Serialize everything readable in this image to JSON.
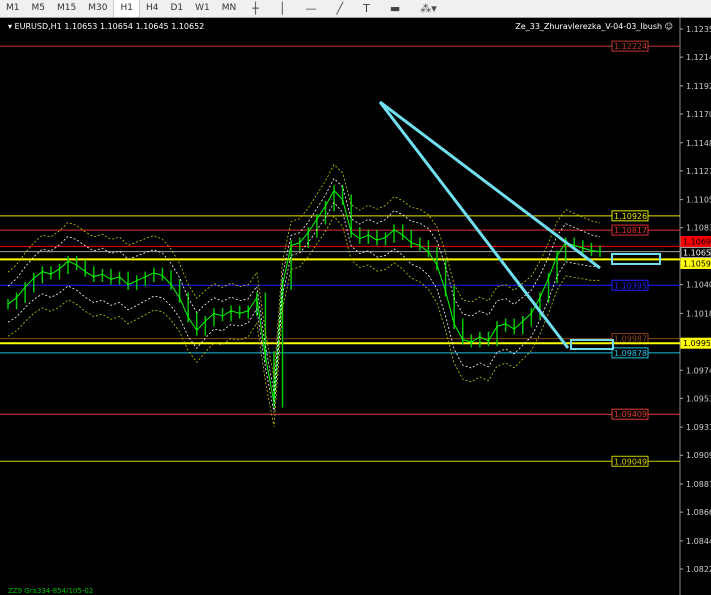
{
  "toolbar": {
    "timeframes": [
      "M1",
      "M5",
      "M15",
      "M30",
      "H1",
      "H4",
      "D1",
      "W1",
      "MN"
    ],
    "selected": "H1",
    "tools": [
      {
        "name": "crosshair-icon",
        "glyph": "┼"
      },
      {
        "name": "vertical-line-icon",
        "glyph": "│"
      },
      {
        "name": "horizontal-line-icon",
        "glyph": "—"
      },
      {
        "name": "trendline-icon",
        "glyph": "╱"
      },
      {
        "name": "text-icon",
        "glyph": "T"
      },
      {
        "name": "label-icon",
        "glyph": "▬"
      },
      {
        "name": "more-tools-icon",
        "glyph": "⁂▾"
      }
    ]
  },
  "chart_header": {
    "symbol": "EURUSD,H1",
    "ohlc": "1.10653 1.10654 1.10645 1.10652",
    "indicator": "Ze_33_Zhuravlerezka_V-04-03_Ibush",
    "footer": "ZZ9 Gra334-854/105-02"
  },
  "chart_data": {
    "type": "line",
    "title": "EURUSD,H1",
    "ylim": [
      1.0811,
      1.125
    ],
    "yticks": [
      "1.12355",
      "1.12140",
      "1.11920",
      "1.11705",
      "1.11485",
      "1.11270",
      "1.11050",
      "1.10835",
      "1.10400",
      "1.10180",
      "1.09745",
      "1.09530",
      "1.09310",
      "1.09095",
      "1.08875",
      "1.08660",
      "1.08440",
      "1.08225"
    ],
    "close": [
      1.1025,
      1.103,
      1.1038,
      1.1045,
      1.105,
      1.1048,
      1.1052,
      1.1058,
      1.1055,
      1.105,
      1.1046,
      1.1048,
      1.1044,
      1.1046,
      1.104,
      1.1043,
      1.1046,
      1.1049,
      1.1047,
      1.104,
      1.103,
      1.1015,
      1.1005,
      1.1012,
      1.1018,
      1.1016,
      1.102,
      1.1018,
      1.102,
      1.103,
      1.0985,
      1.095,
      1.104,
      1.107,
      1.1072,
      1.108,
      1.109,
      1.11,
      1.1112,
      1.1105,
      1.108,
      1.1075,
      1.1078,
      1.1074,
      1.1076,
      1.1082,
      1.1078,
      1.1072,
      1.107,
      1.1065,
      1.1055,
      1.1035,
      1.101,
      1.0998,
      1.0996,
      1.1,
      1.0997,
      1.1008,
      1.101,
      1.1006,
      1.1012,
      1.1018,
      1.103,
      1.1045,
      1.1062,
      1.1072,
      1.107,
      1.1068,
      1.1066,
      1.10652
    ],
    "levels": [
      {
        "price": "1.12224",
        "color": "#c0392b"
      },
      {
        "price": "1.10926",
        "color": "#e8e800"
      },
      {
        "price": "1.10817",
        "color": "#e03030"
      },
      {
        "price": "1.10692",
        "color": "#ff0000"
      },
      {
        "price": "1.10652",
        "color": "#a0a0a0"
      },
      {
        "price": "1.10593",
        "color": "#ffff00"
      },
      {
        "price": "1.10395",
        "color": "#2020ff"
      },
      {
        "price": "1.09987",
        "color": "#8b4513"
      },
      {
        "price": "1.09952",
        "color": "#ffff00"
      },
      {
        "price": "1.09878",
        "color": "#20c0e0"
      },
      {
        "price": "1.09409",
        "color": "#e04030"
      },
      {
        "price": "1.09049",
        "color": "#d0d000"
      }
    ],
    "current_price": "1.10652"
  }
}
